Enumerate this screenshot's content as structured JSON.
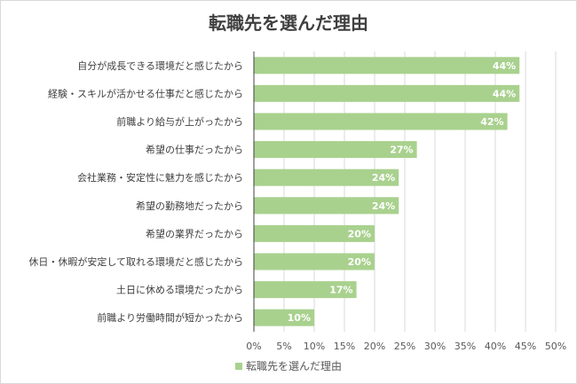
{
  "chart_data": {
    "type": "bar",
    "orientation": "horizontal",
    "title": "転職先を選んだ理由",
    "categories": [
      "自分が成長できる環境だと感じたから",
      "経験・スキルが活かせる仕事だと感じたから",
      "前職より給与が上がったから",
      "希望の仕事だったから",
      "会社業務・安定性に魅力を感じたから",
      "希望の勤務地だったから",
      "希望の業界だったから",
      "休日・休暇が安定して取れる環境だと感じたから",
      "土日に休める環境だったから",
      "前職より労働時間が短かったから"
    ],
    "series": [
      {
        "name": "転職先を選んだ理由",
        "values": [
          44,
          44,
          42,
          27,
          24,
          24,
          20,
          20,
          17,
          10
        ],
        "color": "#a9d18e"
      }
    ],
    "data_labels": [
      "44%",
      "44%",
      "42%",
      "27%",
      "24%",
      "24%",
      "20%",
      "20%",
      "17%",
      "10%"
    ],
    "xlim": [
      0,
      50
    ],
    "x_ticks": [
      "0%",
      "5%",
      "10%",
      "15%",
      "20%",
      "25%",
      "30%",
      "35%",
      "40%",
      "45%",
      "50%"
    ],
    "grid": true,
    "legend_position": "bottom"
  }
}
